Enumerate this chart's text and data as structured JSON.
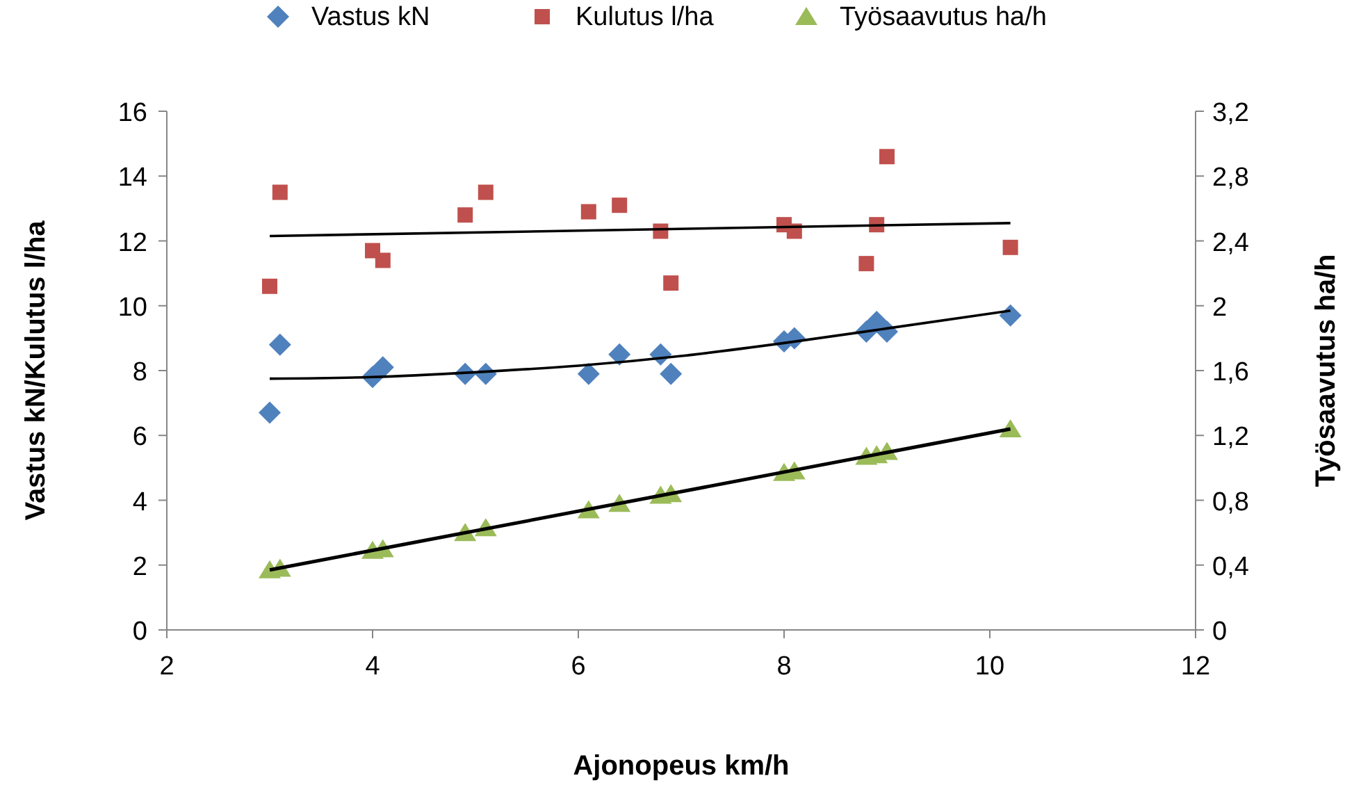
{
  "chart_data": {
    "type": "scatter",
    "xlabel": "Ajonopeus km/h",
    "ylabel": "Vastus kN/Kulutus l/ha",
    "y2label": "Työsaavutus ha/h",
    "xlim": [
      2,
      12
    ],
    "xticks": [
      2,
      4,
      6,
      8,
      10,
      12
    ],
    "ylim": [
      0,
      16
    ],
    "yticks": [
      0,
      2,
      4,
      6,
      8,
      10,
      12,
      14,
      16
    ],
    "y2lim": [
      0,
      3.2
    ],
    "y2ticks": [
      0,
      {
        "value": 0.4,
        "label": "0,4"
      },
      {
        "value": 0.8,
        "label": "0,8"
      },
      {
        "value": 1.2,
        "label": "1,2"
      },
      {
        "value": 1.6,
        "label": "1,6"
      },
      2,
      {
        "value": 2.4,
        "label": "2,4"
      },
      {
        "value": 2.8,
        "label": "2,8"
      },
      {
        "value": 3.2,
        "label": "3,2"
      }
    ],
    "grid": false,
    "legend": "top",
    "series": [
      {
        "name": "Vastus kN",
        "marker": "diamond",
        "color": "#4f81bd",
        "x": [
          3.0,
          3.1,
          4.0,
          4.1,
          4.9,
          5.1,
          6.1,
          6.4,
          6.8,
          6.9,
          8.0,
          8.1,
          8.8,
          8.9,
          9.0,
          10.2
        ],
        "values": [
          6.7,
          8.8,
          7.8,
          8.1,
          7.9,
          7.9,
          7.9,
          8.5,
          8.5,
          7.9,
          8.9,
          9.0,
          9.2,
          9.5,
          9.2,
          9.7
        ]
      },
      {
        "name": "Kulutus l/ha",
        "marker": "square",
        "color": "#c0504d",
        "x": [
          3.0,
          3.1,
          4.0,
          4.1,
          4.9,
          5.1,
          6.1,
          6.4,
          6.8,
          6.9,
          8.0,
          8.1,
          8.8,
          8.9,
          9.0,
          10.2
        ],
        "values": [
          10.6,
          13.5,
          11.7,
          11.4,
          12.8,
          13.5,
          12.9,
          13.1,
          12.3,
          10.7,
          12.5,
          12.3,
          11.3,
          12.5,
          14.6,
          11.8
        ]
      },
      {
        "name": "Työsaavutus ha/h",
        "marker": "triangle",
        "color": "#9bbb59",
        "axis": "y2",
        "x": [
          3.0,
          3.1,
          4.0,
          4.1,
          4.9,
          5.1,
          6.1,
          6.4,
          6.8,
          6.9,
          8.0,
          8.1,
          8.8,
          8.9,
          9.0,
          10.2
        ],
        "values": [
          0.37,
          0.38,
          0.49,
          0.5,
          0.6,
          0.63,
          0.74,
          0.78,
          0.83,
          0.84,
          0.97,
          0.98,
          1.07,
          1.08,
          1.1,
          1.24
        ]
      },
      {
        "type": "line",
        "marker": "none",
        "color": "#000000",
        "x": [
          3,
          4,
          5,
          6,
          7,
          8,
          9,
          10.2
        ],
        "values": [
          7.75,
          7.8,
          7.95,
          8.15,
          8.45,
          8.85,
          9.3,
          9.85
        ]
      },
      {
        "type": "line",
        "marker": "none",
        "color": "#000000",
        "x": [
          3,
          10.2
        ],
        "values": [
          12.15,
          12.55
        ]
      },
      {
        "type": "line",
        "marker": "none",
        "color": "#000000",
        "axis": "y2",
        "x": [
          3,
          10.2
        ],
        "values": [
          0.37,
          1.24
        ]
      }
    ]
  }
}
